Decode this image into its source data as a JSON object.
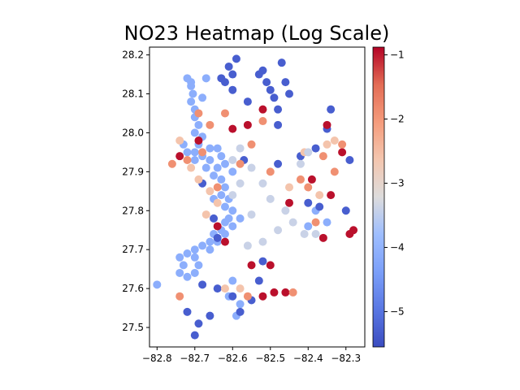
{
  "chart_data": {
    "type": "scatter",
    "title": "NO23 Heatmap (Log Scale)",
    "xlabel": "",
    "ylabel": "",
    "xlim": [
      -82.82,
      -82.25
    ],
    "ylim": [
      27.45,
      28.22
    ],
    "x_ticks": [
      -82.8,
      -82.7,
      -82.6,
      -82.5,
      -82.4,
      -82.3
    ],
    "x_tick_labels": [
      "−82.8",
      "−82.7",
      "−82.6",
      "−82.5",
      "−82.4",
      "−82.3"
    ],
    "y_ticks": [
      27.5,
      27.6,
      27.7,
      27.8,
      27.9,
      28.0,
      28.1,
      28.2
    ],
    "y_tick_labels": [
      "27.5",
      "27.6",
      "27.7",
      "27.8",
      "27.9",
      "28.0",
      "28.1",
      "28.2"
    ],
    "grid": false,
    "colorbar": {
      "colormap": "coolwarm",
      "vmin": -5.55,
      "vmax": -0.88,
      "ticks": [
        -5,
        -4,
        -3,
        -2,
        -1
      ],
      "tick_labels": [
        "−5",
        "−4",
        "−3",
        "−2",
        "−1"
      ],
      "placement": "right"
    },
    "points": [
      {
        "x": -82.71,
        "y": 28.13,
        "v": -4.1
      },
      {
        "x": -82.71,
        "y": 28.12,
        "v": -4.1
      },
      {
        "x": -82.705,
        "y": 28.1,
        "v": -4.1
      },
      {
        "x": -82.71,
        "y": 28.08,
        "v": -4.1
      },
      {
        "x": -82.7,
        "y": 28.06,
        "v": -4.1
      },
      {
        "x": -82.7,
        "y": 28.04,
        "v": -4.1
      },
      {
        "x": -82.69,
        "y": 28.02,
        "v": -4.1
      },
      {
        "x": -82.7,
        "y": 28.0,
        "v": -4.1
      },
      {
        "x": -82.68,
        "y": 27.99,
        "v": -4.1
      },
      {
        "x": -82.69,
        "y": 27.97,
        "v": -4.1
      },
      {
        "x": -82.7,
        "y": 27.95,
        "v": -4.1
      },
      {
        "x": -82.68,
        "y": 27.94,
        "v": -4.1
      },
      {
        "x": -82.7,
        "y": 27.93,
        "v": -4.1
      },
      {
        "x": -82.66,
        "y": 27.93,
        "v": -4.1
      },
      {
        "x": -82.67,
        "y": 27.91,
        "v": -4.1
      },
      {
        "x": -82.64,
        "y": 27.91,
        "v": -4.1
      },
      {
        "x": -82.65,
        "y": 27.89,
        "v": -4.1
      },
      {
        "x": -82.63,
        "y": 27.88,
        "v": -4.1
      },
      {
        "x": -82.62,
        "y": 27.86,
        "v": -4.1
      },
      {
        "x": -82.63,
        "y": 27.84,
        "v": -4.1
      },
      {
        "x": -82.61,
        "y": 27.83,
        "v": -4.1
      },
      {
        "x": -82.62,
        "y": 27.81,
        "v": -4.1
      },
      {
        "x": -82.6,
        "y": 27.8,
        "v": -4.1
      },
      {
        "x": -82.61,
        "y": 27.78,
        "v": -4.1
      },
      {
        "x": -82.62,
        "y": 27.77,
        "v": -4.1
      },
      {
        "x": -82.63,
        "y": 27.75,
        "v": -4.1
      },
      {
        "x": -82.65,
        "y": 27.74,
        "v": -4.1
      },
      {
        "x": -82.66,
        "y": 27.72,
        "v": -4.1
      },
      {
        "x": -82.68,
        "y": 27.71,
        "v": -4.1
      },
      {
        "x": -82.7,
        "y": 27.7,
        "v": -4.1
      },
      {
        "x": -82.72,
        "y": 27.69,
        "v": -4.1
      },
      {
        "x": -82.74,
        "y": 27.68,
        "v": -4.1
      },
      {
        "x": -82.73,
        "y": 27.66,
        "v": -4.1
      },
      {
        "x": -82.74,
        "y": 27.64,
        "v": -4.1
      },
      {
        "x": -82.72,
        "y": 27.63,
        "v": -4.1
      },
      {
        "x": -82.7,
        "y": 27.64,
        "v": -4.1
      },
      {
        "x": -82.69,
        "y": 27.66,
        "v": -4.1
      },
      {
        "x": -82.7,
        "y": 27.68,
        "v": -4.1
      },
      {
        "x": -82.66,
        "y": 27.7,
        "v": -4.1
      },
      {
        "x": -82.64,
        "y": 27.72,
        "v": -4.1
      },
      {
        "x": -82.62,
        "y": 27.74,
        "v": -4.1
      },
      {
        "x": -82.6,
        "y": 27.76,
        "v": -4.1
      },
      {
        "x": -82.58,
        "y": 27.78,
        "v": -4.1
      },
      {
        "x": -82.64,
        "y": 27.96,
        "v": -4.1
      },
      {
        "x": -82.66,
        "y": 27.96,
        "v": -4.1
      },
      {
        "x": -82.63,
        "y": 27.94,
        "v": -4.1
      },
      {
        "x": -82.62,
        "y": 27.92,
        "v": -4.1
      },
      {
        "x": -82.6,
        "y": 27.9,
        "v": -4.1
      },
      {
        "x": -82.72,
        "y": 28.14,
        "v": -4.1
      },
      {
        "x": -82.73,
        "y": 27.97,
        "v": -4.1
      },
      {
        "x": -82.72,
        "y": 27.95,
        "v": -4.1
      },
      {
        "x": -82.65,
        "y": 27.83,
        "v": -4.1
      },
      {
        "x": -82.8,
        "y": 27.61,
        "v": -4.1
      },
      {
        "x": -82.59,
        "y": 27.53,
        "v": -4.1
      },
      {
        "x": -82.61,
        "y": 27.58,
        "v": -4.1
      },
      {
        "x": -82.6,
        "y": 27.62,
        "v": -4.1
      },
      {
        "x": -82.58,
        "y": 27.56,
        "v": -4.1
      },
      {
        "x": -82.68,
        "y": 28.09,
        "v": -4.1
      },
      {
        "x": -82.67,
        "y": 28.14,
        "v": -4.1
      },
      {
        "x": -82.4,
        "y": 27.76,
        "v": -4.1
      },
      {
        "x": -82.35,
        "y": 27.77,
        "v": -4.1
      },
      {
        "x": -82.38,
        "y": 27.8,
        "v": -4.1
      },
      {
        "x": -82.6,
        "y": 28.15,
        "v": -5.3
      },
      {
        "x": -82.61,
        "y": 28.17,
        "v": -5.3
      },
      {
        "x": -82.63,
        "y": 28.14,
        "v": -5.3
      },
      {
        "x": -82.6,
        "y": 28.11,
        "v": -5.3
      },
      {
        "x": -82.56,
        "y": 28.08,
        "v": -5.3
      },
      {
        "x": -82.53,
        "y": 28.15,
        "v": -5.3
      },
      {
        "x": -82.51,
        "y": 28.13,
        "v": -5.3
      },
      {
        "x": -82.5,
        "y": 28.11,
        "v": -5.3
      },
      {
        "x": -82.49,
        "y": 28.09,
        "v": -5.3
      },
      {
        "x": -82.48,
        "y": 28.06,
        "v": -5.3
      },
      {
        "x": -82.52,
        "y": 28.16,
        "v": -5.3
      },
      {
        "x": -82.47,
        "y": 28.18,
        "v": -5.3
      },
      {
        "x": -82.48,
        "y": 28.02,
        "v": -5.3
      },
      {
        "x": -82.35,
        "y": 28.01,
        "v": -5.3
      },
      {
        "x": -82.34,
        "y": 28.06,
        "v": -5.3
      },
      {
        "x": -82.38,
        "y": 27.96,
        "v": -5.3
      },
      {
        "x": -82.42,
        "y": 27.94,
        "v": -5.3
      },
      {
        "x": -82.29,
        "y": 27.93,
        "v": -5.3
      },
      {
        "x": -82.3,
        "y": 27.8,
        "v": -5.3
      },
      {
        "x": -82.37,
        "y": 27.81,
        "v": -5.3
      },
      {
        "x": -82.4,
        "y": 27.82,
        "v": -5.3
      },
      {
        "x": -82.68,
        "y": 27.87,
        "v": -5.3
      },
      {
        "x": -82.65,
        "y": 27.78,
        "v": -5.3
      },
      {
        "x": -82.64,
        "y": 27.73,
        "v": -5.3
      },
      {
        "x": -82.53,
        "y": 27.62,
        "v": -5.3
      },
      {
        "x": -82.55,
        "y": 27.57,
        "v": -5.3
      },
      {
        "x": -82.58,
        "y": 27.54,
        "v": -5.3
      },
      {
        "x": -82.7,
        "y": 27.48,
        "v": -5.3
      },
      {
        "x": -82.69,
        "y": 27.51,
        "v": -5.3
      },
      {
        "x": -82.72,
        "y": 27.54,
        "v": -5.3
      },
      {
        "x": -82.66,
        "y": 27.53,
        "v": -5.3
      },
      {
        "x": -82.64,
        "y": 27.6,
        "v": -5.3
      },
      {
        "x": -82.68,
        "y": 27.61,
        "v": -5.3
      },
      {
        "x": -82.57,
        "y": 27.93,
        "v": -5.3
      },
      {
        "x": -82.48,
        "y": 27.92,
        "v": -5.3
      },
      {
        "x": -82.52,
        "y": 27.67,
        "v": -5.3
      },
      {
        "x": -82.62,
        "y": 28.13,
        "v": -5.3
      },
      {
        "x": -82.45,
        "y": 28.1,
        "v": -5.3
      },
      {
        "x": -82.46,
        "y": 28.13,
        "v": -5.3
      },
      {
        "x": -82.59,
        "y": 28.19,
        "v": -5.3
      },
      {
        "x": -82.6,
        "y": 27.58,
        "v": -5.3
      },
      {
        "x": -82.74,
        "y": 27.94,
        "v": -0.95
      },
      {
        "x": -82.69,
        "y": 27.98,
        "v": -0.95
      },
      {
        "x": -82.6,
        "y": 28.01,
        "v": -0.95
      },
      {
        "x": -82.56,
        "y": 28.02,
        "v": -0.95
      },
      {
        "x": -82.52,
        "y": 28.06,
        "v": -0.95
      },
      {
        "x": -82.35,
        "y": 28.02,
        "v": -0.95
      },
      {
        "x": -82.31,
        "y": 27.95,
        "v": -0.95
      },
      {
        "x": -82.34,
        "y": 27.84,
        "v": -0.95
      },
      {
        "x": -82.28,
        "y": 27.75,
        "v": -0.95
      },
      {
        "x": -82.29,
        "y": 27.74,
        "v": -0.95
      },
      {
        "x": -82.5,
        "y": 27.66,
        "v": -0.95
      },
      {
        "x": -82.49,
        "y": 27.59,
        "v": -0.95
      },
      {
        "x": -82.46,
        "y": 27.59,
        "v": -0.95
      },
      {
        "x": -82.52,
        "y": 27.58,
        "v": -0.95
      },
      {
        "x": -82.55,
        "y": 27.66,
        "v": -0.95
      },
      {
        "x": -82.64,
        "y": 27.76,
        "v": -0.95
      },
      {
        "x": -82.62,
        "y": 27.72,
        "v": -0.95
      },
      {
        "x": -82.39,
        "y": 27.88,
        "v": -0.95
      },
      {
        "x": -82.36,
        "y": 27.73,
        "v": -0.95
      },
      {
        "x": -82.45,
        "y": 27.82,
        "v": -0.95
      },
      {
        "x": -82.72,
        "y": 27.93,
        "v": -1.9
      },
      {
        "x": -82.69,
        "y": 28.05,
        "v": -1.9
      },
      {
        "x": -82.66,
        "y": 28.02,
        "v": -1.9
      },
      {
        "x": -82.62,
        "y": 28.05,
        "v": -1.9
      },
      {
        "x": -82.58,
        "y": 27.92,
        "v": -1.9
      },
      {
        "x": -82.42,
        "y": 27.88,
        "v": -1.9
      },
      {
        "x": -82.4,
        "y": 27.86,
        "v": -1.9
      },
      {
        "x": -82.36,
        "y": 27.94,
        "v": -1.9
      },
      {
        "x": -82.33,
        "y": 27.9,
        "v": -1.9
      },
      {
        "x": -82.31,
        "y": 27.97,
        "v": -1.9
      },
      {
        "x": -82.38,
        "y": 27.77,
        "v": -1.9
      },
      {
        "x": -82.44,
        "y": 27.59,
        "v": -1.9
      },
      {
        "x": -82.56,
        "y": 27.58,
        "v": -1.9
      },
      {
        "x": -82.74,
        "y": 27.58,
        "v": -1.9
      },
      {
        "x": -82.64,
        "y": 27.86,
        "v": -1.9
      },
      {
        "x": -82.55,
        "y": 27.97,
        "v": -1.9
      },
      {
        "x": -82.52,
        "y": 28.03,
        "v": -1.9
      },
      {
        "x": -82.5,
        "y": 27.9,
        "v": -1.9
      },
      {
        "x": -82.76,
        "y": 27.92,
        "v": -1.9
      },
      {
        "x": -82.68,
        "y": 27.95,
        "v": -1.9
      },
      {
        "x": -82.74,
        "y": 27.98,
        "v": -2.6
      },
      {
        "x": -82.71,
        "y": 27.91,
        "v": -2.6
      },
      {
        "x": -82.66,
        "y": 27.85,
        "v": -2.6
      },
      {
        "x": -82.64,
        "y": 27.82,
        "v": -2.6
      },
      {
        "x": -82.45,
        "y": 27.86,
        "v": -2.6
      },
      {
        "x": -82.37,
        "y": 27.84,
        "v": -2.6
      },
      {
        "x": -82.35,
        "y": 27.97,
        "v": -2.6
      },
      {
        "x": -82.33,
        "y": 27.98,
        "v": -2.6
      },
      {
        "x": -82.58,
        "y": 27.6,
        "v": -2.6
      },
      {
        "x": -82.62,
        "y": 27.6,
        "v": -2.6
      },
      {
        "x": -82.69,
        "y": 27.88,
        "v": -2.6
      },
      {
        "x": -82.67,
        "y": 27.79,
        "v": -2.6
      },
      {
        "x": -82.41,
        "y": 27.95,
        "v": -2.6
      },
      {
        "x": -82.58,
        "y": 27.96,
        "v": -3.4
      },
      {
        "x": -82.55,
        "y": 27.91,
        "v": -3.4
      },
      {
        "x": -82.52,
        "y": 27.87,
        "v": -3.4
      },
      {
        "x": -82.5,
        "y": 27.83,
        "v": -3.4
      },
      {
        "x": -82.46,
        "y": 27.8,
        "v": -3.4
      },
      {
        "x": -82.44,
        "y": 27.77,
        "v": -3.4
      },
      {
        "x": -82.48,
        "y": 27.75,
        "v": -3.4
      },
      {
        "x": -82.52,
        "y": 27.72,
        "v": -3.4
      },
      {
        "x": -82.56,
        "y": 27.71,
        "v": -3.4
      },
      {
        "x": -82.55,
        "y": 27.79,
        "v": -3.4
      },
      {
        "x": -82.42,
        "y": 27.92,
        "v": -3.4
      },
      {
        "x": -82.4,
        "y": 27.95,
        "v": -3.4
      },
      {
        "x": -82.38,
        "y": 27.74,
        "v": -3.4
      },
      {
        "x": -82.41,
        "y": 27.74,
        "v": -3.4
      },
      {
        "x": -82.58,
        "y": 27.87,
        "v": -3.4
      },
      {
        "x": -82.6,
        "y": 27.84,
        "v": -3.4
      },
      {
        "x": -82.6,
        "y": 27.93,
        "v": -3.4
      }
    ]
  }
}
